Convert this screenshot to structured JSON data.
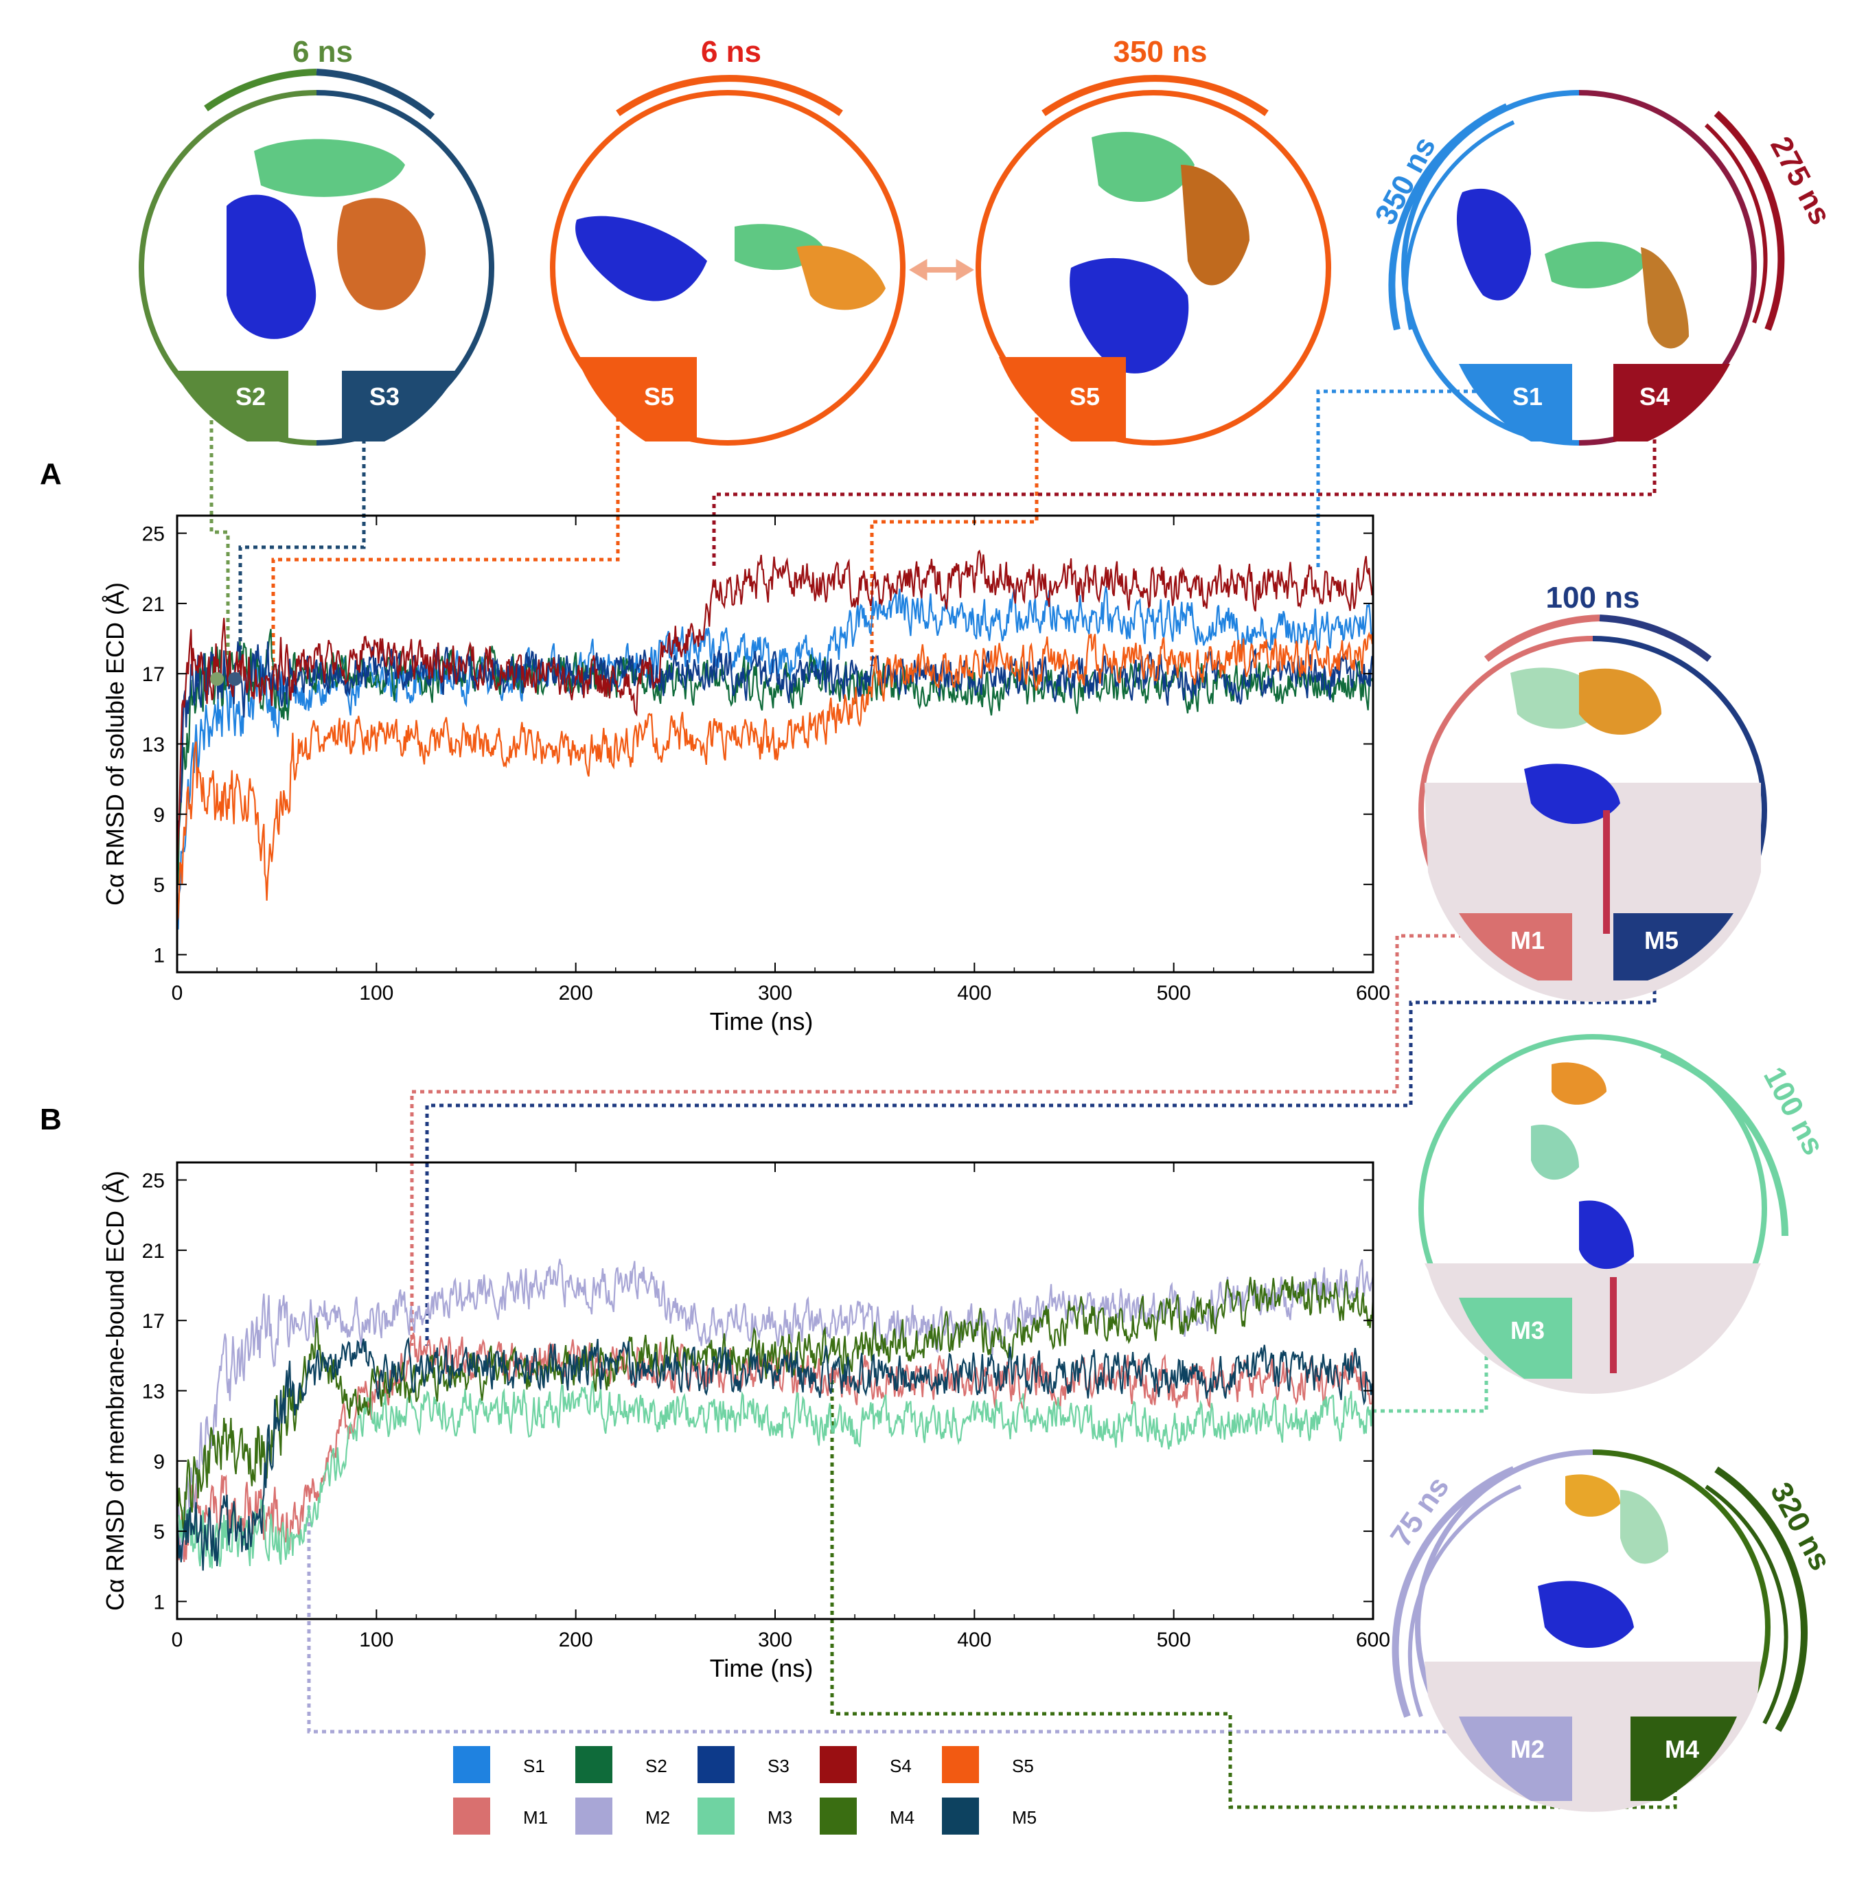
{
  "panels": {
    "a": "A",
    "b": "B"
  },
  "colors": {
    "S1": "#1f82e0",
    "S2": "#0f6b3a",
    "S3": "#0d3a8a",
    "S4": "#9a0f12",
    "S5": "#f25a12",
    "M1": "#d9706f",
    "M2": "#a8a6d6",
    "M3": "#6fd3a2",
    "M4": "#3a6e12",
    "M5": "#0d4260"
  },
  "snapshots": [
    {
      "durations": [
        "6 ns"
      ],
      "labels": [
        "S2",
        "S3"
      ],
      "colors": [
        "#5a8a3a",
        "#1e4a72"
      ]
    },
    {
      "durations": [
        "6 ns"
      ],
      "labels": [
        "S5"
      ],
      "colors": [
        "#f25a12"
      ]
    },
    {
      "durations": [
        "350 ns"
      ],
      "labels": [
        "S5"
      ],
      "colors": [
        "#f25a12"
      ]
    },
    {
      "durations": [
        "350 ns",
        "275 ns"
      ],
      "labels": [
        "S1",
        "S4"
      ],
      "colors": [
        "#2a8ae0",
        "#9a0f20"
      ]
    },
    {
      "durations": [
        "100 ns"
      ],
      "labels": [
        "M1",
        "M5"
      ],
      "colors": [
        "#d9706f",
        "#1e3a80"
      ]
    },
    {
      "durations": [
        "100 ns"
      ],
      "labels": [
        "M3"
      ],
      "colors": [
        "#6fd3a2"
      ]
    },
    {
      "durations": [
        "75 ns",
        "320 ns"
      ],
      "labels": [
        "M2",
        "M4"
      ],
      "colors": [
        "#a8a6d6",
        "#2f5e10"
      ]
    }
  ],
  "legend": [
    "S1",
    "S2",
    "S3",
    "S4",
    "S5",
    "M1",
    "M2",
    "M3",
    "M4",
    "M5"
  ],
  "chart_data": [
    {
      "type": "line",
      "panel": "A",
      "title": "",
      "xlabel": "Time (ns)",
      "ylabel": "Cα RMSD of soluble ECD (Å)",
      "xlim": [
        0,
        600
      ],
      "ylim": [
        0,
        26
      ],
      "xticks": [
        0,
        100,
        200,
        300,
        400,
        500,
        600
      ],
      "yticks": [
        1,
        5,
        9,
        13,
        17,
        21,
        25
      ],
      "series": [
        {
          "name": "S1",
          "x": [
            0,
            3,
            8,
            20,
            40,
            60,
            100,
            150,
            200,
            240,
            260,
            300,
            330,
            350,
            400,
            450,
            500,
            550,
            600
          ],
          "y": [
            2,
            8,
            12,
            15,
            16,
            15.5,
            16.5,
            17,
            17,
            18,
            18.5,
            18,
            18,
            21,
            20,
            20.5,
            20,
            19.5,
            20
          ]
        },
        {
          "name": "S2",
          "x": [
            0,
            3,
            8,
            20,
            50,
            100,
            200,
            300,
            350,
            400,
            500,
            600
          ],
          "y": [
            5,
            12,
            16,
            17,
            17,
            17,
            16.8,
            16.5,
            16.3,
            16.3,
            16.3,
            16.5
          ]
        },
        {
          "name": "S3",
          "x": [
            0,
            3,
            8,
            20,
            50,
            100,
            200,
            300,
            350,
            400,
            500,
            600
          ],
          "y": [
            6,
            13,
            17,
            17,
            17,
            17.2,
            17,
            17,
            16.8,
            16.8,
            16.8,
            17
          ]
        },
        {
          "name": "S4",
          "x": [
            0,
            3,
            8,
            20,
            50,
            100,
            150,
            200,
            230,
            250,
            265,
            270,
            300,
            350,
            400,
            500,
            600
          ],
          "y": [
            5,
            15,
            17,
            17.5,
            17.5,
            18,
            17.5,
            16.5,
            16,
            19,
            19.5,
            21.5,
            22.5,
            22,
            22.5,
            22,
            22
          ]
        },
        {
          "name": "S5",
          "x": [
            0,
            3,
            8,
            15,
            25,
            35,
            45,
            60,
            100,
            150,
            200,
            250,
            300,
            330,
            345,
            350,
            400,
            500,
            600
          ],
          "y": [
            2,
            7,
            11,
            10,
            9,
            11,
            5,
            13,
            13.5,
            13,
            12.5,
            13.5,
            13,
            14.5,
            15.5,
            17,
            17.5,
            17.8,
            18
          ]
        }
      ]
    },
    {
      "type": "line",
      "panel": "B",
      "title": "",
      "xlabel": "Time (ns)",
      "ylabel": "Cα RMSD of membrane-bound ECD (Å)",
      "xlim": [
        0,
        600
      ],
      "ylim": [
        0,
        26
      ],
      "xticks": [
        0,
        100,
        200,
        300,
        400,
        500,
        600
      ],
      "yticks": [
        1,
        5,
        9,
        13,
        17,
        21,
        25
      ],
      "series": [
        {
          "name": "M1",
          "x": [
            0,
            20,
            40,
            60,
            75,
            90,
            120,
            200,
            300,
            400,
            500,
            600
          ],
          "y": [
            5,
            6,
            6,
            5,
            9,
            12,
            15,
            14.5,
            14,
            13.5,
            13.5,
            13.5
          ]
        },
        {
          "name": "M2",
          "x": [
            0,
            10,
            30,
            60,
            100,
            150,
            200,
            240,
            250,
            300,
            400,
            450,
            500,
            550,
            600
          ],
          "y": [
            5,
            9,
            15,
            17.5,
            17,
            18.5,
            19,
            19,
            17,
            17,
            16.5,
            18,
            17.5,
            18.5,
            19
          ]
        },
        {
          "name": "M3",
          "x": [
            0,
            30,
            60,
            75,
            90,
            120,
            200,
            300,
            350,
            400,
            500,
            600
          ],
          "y": [
            5,
            5,
            5,
            8,
            11,
            12,
            12,
            11.5,
            11,
            11.5,
            11,
            11.5
          ]
        },
        {
          "name": "M4",
          "x": [
            0,
            20,
            40,
            60,
            70,
            80,
            90,
            100,
            150,
            200,
            300,
            400,
            450,
            500,
            550,
            600
          ],
          "y": [
            6,
            10,
            10,
            12,
            16,
            13,
            12,
            13,
            14,
            14.5,
            15,
            16,
            17,
            17,
            18.5,
            18
          ]
        },
        {
          "name": "M5",
          "x": [
            0,
            20,
            40,
            50,
            60,
            70,
            90,
            100,
            200,
            300,
            400,
            500,
            600
          ],
          "y": [
            5,
            4.5,
            5,
            12,
            13,
            14,
            15,
            14,
            14.5,
            14,
            14,
            14,
            14
          ]
        }
      ]
    }
  ]
}
